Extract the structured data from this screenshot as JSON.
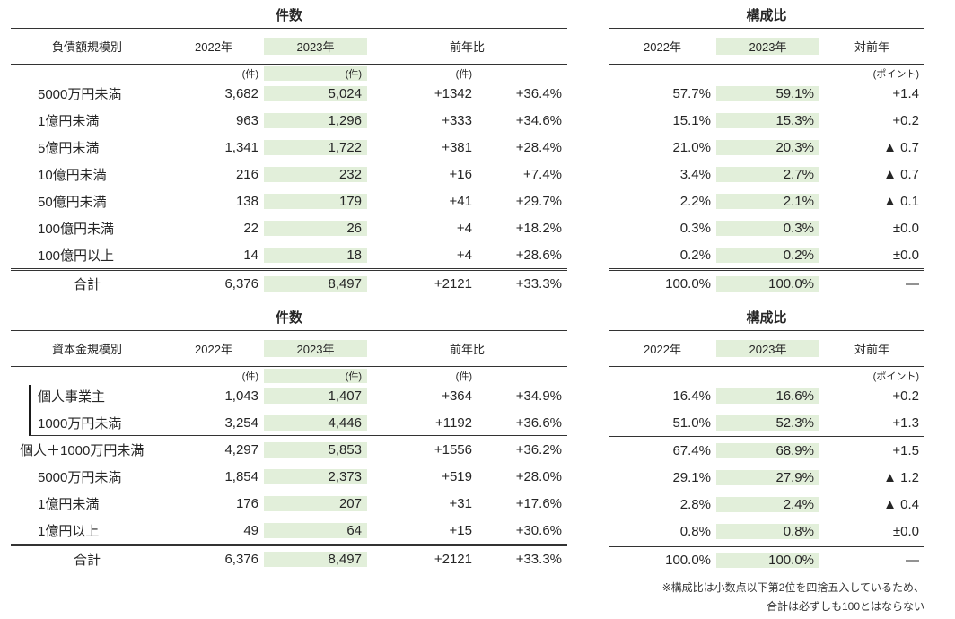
{
  "colors": {
    "highlight": "#e2efda",
    "text": "#262626",
    "rule": "#333333"
  },
  "footnote": {
    "line1": "※構成比は小数点以下第2位を四捨五入しているため、",
    "line2": "合計は必ずしも100とはならない"
  },
  "sections": [
    {
      "count_table": {
        "title": "件数",
        "row_header": "負債額規模別",
        "years": [
          "2022年",
          "2023年"
        ],
        "change_header": "前年比",
        "unit": "(件)",
        "rows": [
          {
            "label": "5000万円未満",
            "y2022": "3,682",
            "y2023": "5,024",
            "diff": "+1342",
            "pct": "+36.4%"
          },
          {
            "label": "1億円未満",
            "y2022": "963",
            "y2023": "1,296",
            "diff": "+333",
            "pct": "+34.6%"
          },
          {
            "label": "5億円未満",
            "y2022": "1,341",
            "y2023": "1,722",
            "diff": "+381",
            "pct": "+28.4%"
          },
          {
            "label": "10億円未満",
            "y2022": "216",
            "y2023": "232",
            "diff": "+16",
            "pct": "+7.4%"
          },
          {
            "label": "50億円未満",
            "y2022": "138",
            "y2023": "179",
            "diff": "+41",
            "pct": "+29.7%"
          },
          {
            "label": "100億円未満",
            "y2022": "22",
            "y2023": "26",
            "diff": "+4",
            "pct": "+18.2%"
          },
          {
            "label": "100億円以上",
            "y2022": "14",
            "y2023": "18",
            "diff": "+4",
            "pct": "+28.6%"
          }
        ],
        "total": {
          "label": "合計",
          "y2022": "6,376",
          "y2023": "8,497",
          "diff": "+2121",
          "pct": "+33.3%"
        }
      },
      "ratio_table": {
        "title": "構成比",
        "years": [
          "2022年",
          "2023年"
        ],
        "change_header": "対前年",
        "unit": "(ポイント)",
        "rows": [
          {
            "y2022": "57.7%",
            "y2023": "59.1%",
            "diff": "+1.4"
          },
          {
            "y2022": "15.1%",
            "y2023": "15.3%",
            "diff": "+0.2"
          },
          {
            "y2022": "21.0%",
            "y2023": "20.3%",
            "diff": "▲ 0.7"
          },
          {
            "y2022": "3.4%",
            "y2023": "2.7%",
            "diff": "▲ 0.7"
          },
          {
            "y2022": "2.2%",
            "y2023": "2.1%",
            "diff": "▲ 0.1"
          },
          {
            "y2022": "0.3%",
            "y2023": "0.3%",
            "diff": "±0.0"
          },
          {
            "y2022": "0.2%",
            "y2023": "0.2%",
            "diff": "±0.0"
          }
        ],
        "total": {
          "y2022": "100.0%",
          "y2023": "100.0%",
          "diff": "—"
        }
      }
    },
    {
      "count_table": {
        "title": "件数",
        "row_header": "資本金規模別",
        "years": [
          "2022年",
          "2023年"
        ],
        "change_header": "前年比",
        "unit": "(件)",
        "rows": [
          {
            "label": "個人事業主",
            "y2022": "1,043",
            "y2023": "1,407",
            "diff": "+364",
            "pct": "+34.9%",
            "group": true
          },
          {
            "label": "1000万円未満",
            "y2022": "3,254",
            "y2023": "4,446",
            "diff": "+1192",
            "pct": "+36.6%",
            "group": true
          },
          {
            "label": "個人＋1000万円未満",
            "y2022": "4,297",
            "y2023": "5,853",
            "diff": "+1556",
            "pct": "+36.2%",
            "indent": "none"
          },
          {
            "label": "5000万円未満",
            "y2022": "1,854",
            "y2023": "2,373",
            "diff": "+519",
            "pct": "+28.0%"
          },
          {
            "label": "1億円未満",
            "y2022": "176",
            "y2023": "207",
            "diff": "+31",
            "pct": "+17.6%"
          },
          {
            "label": "1億円以上",
            "y2022": "49",
            "y2023": "64",
            "diff": "+15",
            "pct": "+30.6%"
          }
        ],
        "total": {
          "label": "合計",
          "y2022": "6,376",
          "y2023": "8,497",
          "diff": "+2121",
          "pct": "+33.3%"
        }
      },
      "ratio_table": {
        "title": "構成比",
        "years": [
          "2022年",
          "2023年"
        ],
        "change_header": "対前年",
        "unit": "(ポイント)",
        "rows": [
          {
            "y2022": "16.4%",
            "y2023": "16.6%",
            "diff": "+0.2",
            "group": true
          },
          {
            "y2022": "51.0%",
            "y2023": "52.3%",
            "diff": "+1.3",
            "group": true
          },
          {
            "y2022": "67.4%",
            "y2023": "68.9%",
            "diff": "+1.5"
          },
          {
            "y2022": "29.1%",
            "y2023": "27.9%",
            "diff": "▲ 1.2"
          },
          {
            "y2022": "2.8%",
            "y2023": "2.4%",
            "diff": "▲ 0.4"
          },
          {
            "y2022": "0.8%",
            "y2023": "0.8%",
            "diff": "±0.0"
          }
        ],
        "total": {
          "y2022": "100.0%",
          "y2023": "100.0%",
          "diff": "—"
        }
      }
    }
  ]
}
